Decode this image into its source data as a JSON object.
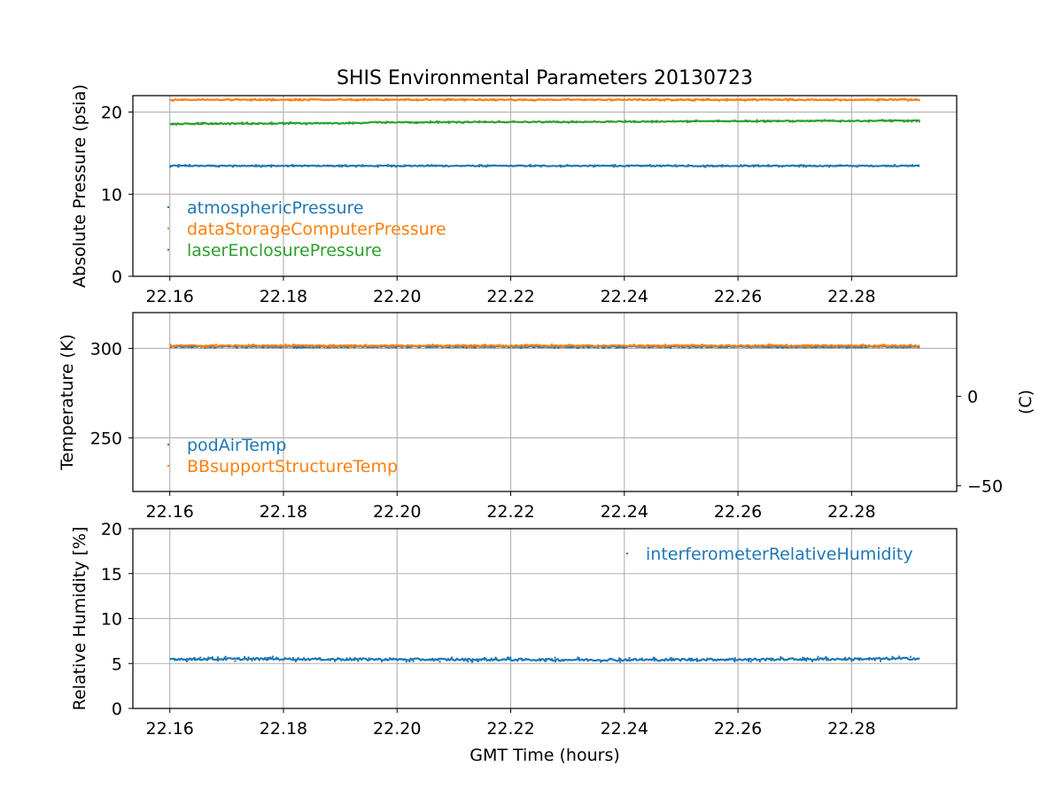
{
  "chart_data": {
    "title": "SHIS Environmental Parameters 20130723",
    "type": "line",
    "xlabel": "GMT Time (hours)",
    "xlim": [
      22.1535,
      22.2985
    ],
    "xticks": [
      "22.16",
      "22.18",
      "22.20",
      "22.22",
      "22.24",
      "22.26",
      "22.28"
    ],
    "colors": {
      "blue": "#1f77b4",
      "orange": "#ff7f0e",
      "green": "#2ca02c"
    },
    "panels": [
      {
        "ylabel": "Absolute Pressure (psia)",
        "ylim": [
          0,
          22
        ],
        "yticks": [
          "0",
          "10",
          "20"
        ],
        "grid": true,
        "legend_position": "lower-left",
        "series": [
          {
            "name": "atmosphericPressure",
            "color": "#1f77b4",
            "x_range": [
              22.16,
              22.292
            ],
            "y": [
              [
                22.16,
                13.45
              ],
              [
                22.292,
                13.45
              ]
            ]
          },
          {
            "name": "dataStorageComputerPressure",
            "color": "#ff7f0e",
            "x_range": [
              22.16,
              22.292
            ],
            "y": [
              [
                22.16,
                21.5
              ],
              [
                22.292,
                21.5
              ]
            ]
          },
          {
            "name": "laserEnclosurePressure",
            "color": "#2ca02c",
            "x_range": [
              22.16,
              22.292
            ],
            "y": [
              [
                22.16,
                18.55
              ],
              [
                22.17,
                18.6
              ],
              [
                22.194,
                18.65
              ],
              [
                22.195,
                18.75
              ],
              [
                22.23,
                18.8
              ],
              [
                22.26,
                18.9
              ],
              [
                22.292,
                18.95
              ]
            ]
          }
        ]
      },
      {
        "ylabel": "Temperature (K)",
        "ylim": [
          220,
          320
        ],
        "yticks": [
          "250",
          "300"
        ],
        "right_axis": {
          "label": "(C)",
          "ticks": [
            "−50",
            "0"
          ],
          "tick_values_K": [
            223.15,
            273.15
          ]
        },
        "grid": true,
        "legend_position": "lower-left",
        "series": [
          {
            "name": "podAirTemp",
            "color": "#1f77b4",
            "x_range": [
              22.16,
              22.292
            ],
            "y": [
              [
                22.16,
                300.9
              ],
              [
                22.292,
                300.9
              ]
            ]
          },
          {
            "name": "BBsupportStructureTemp",
            "color": "#ff7f0e",
            "x_range": [
              22.16,
              22.292
            ],
            "y": [
              [
                22.16,
                301.5
              ],
              [
                22.292,
                301.5
              ]
            ]
          }
        ]
      },
      {
        "ylabel": "Relative Humidity [%]",
        "ylim": [
          0,
          20
        ],
        "yticks": [
          "0",
          "5",
          "10",
          "15",
          "20"
        ],
        "grid": true,
        "legend_position": "upper-right",
        "series": [
          {
            "name": "interferometerRelativeHumidity",
            "color": "#1f77b4",
            "x_range": [
              22.16,
              22.292
            ],
            "y": [
              [
                22.16,
                5.5
              ],
              [
                22.18,
                5.5
              ],
              [
                22.2,
                5.45
              ],
              [
                22.24,
                5.4
              ],
              [
                22.26,
                5.45
              ],
              [
                22.28,
                5.5
              ],
              [
                22.292,
                5.55
              ]
            ]
          }
        ]
      }
    ]
  }
}
